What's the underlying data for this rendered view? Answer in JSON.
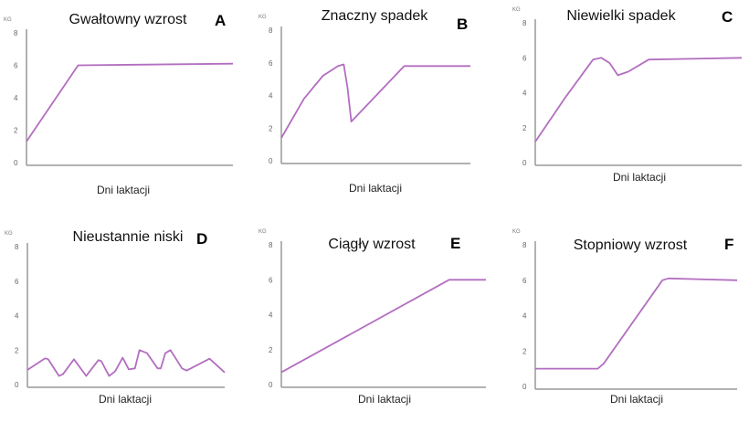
{
  "line_color": "#b36ec0",
  "chart_data": [
    {
      "type": "line",
      "id": "A",
      "title": "Gwałtowny wzrost",
      "letter": "A",
      "ylabel": "KG",
      "xlabel": "Dni laktacji",
      "ylim": [
        0,
        8
      ],
      "yticks": [
        "0",
        "2",
        "4",
        "6",
        "8"
      ],
      "grid": false,
      "x": [
        0,
        25,
        100
      ],
      "y": [
        1.3,
        6,
        6.1
      ]
    },
    {
      "type": "line",
      "id": "B",
      "title": "Znaczny spadek",
      "letter": "B",
      "ylabel": "KG",
      "xlabel": "Dni laktacji",
      "ylim": [
        0,
        8
      ],
      "yticks": [
        "0",
        "2",
        "4",
        "6",
        "8"
      ],
      "grid": false,
      "x": [
        0,
        12,
        22,
        30,
        33,
        35,
        37,
        65,
        100
      ],
      "y": [
        1.4,
        3.8,
        5.2,
        5.8,
        5.9,
        4.5,
        2.4,
        5.8,
        5.8
      ]
    },
    {
      "type": "line",
      "id": "C",
      "title": "Niewielki spadek",
      "letter": "C",
      "ylabel": "KG",
      "xlabel": "Dni laktacji",
      "ylim": [
        0,
        8
      ],
      "yticks": [
        "0",
        "2",
        "4",
        "6",
        "8"
      ],
      "grid": false,
      "x": [
        0,
        15,
        28,
        32,
        36,
        40,
        45,
        55,
        100
      ],
      "y": [
        1.2,
        3.8,
        5.9,
        6,
        5.7,
        5,
        5.2,
        5.9,
        6
      ]
    },
    {
      "type": "line",
      "id": "D",
      "title": "Nieustannie niski",
      "letter": "D",
      "ylabel": "KG",
      "xlabel": "Dni laktacji",
      "ylim": [
        0,
        8
      ],
      "yticks": [
        "0",
        "2",
        "4",
        "6",
        "8"
      ],
      "grid": false,
      "x": [
        0,
        9,
        10.5,
        16,
        18,
        23.6,
        29.8,
        36,
        37.5,
        41.4,
        44.4,
        48.3,
        51.4,
        54.5,
        56.8,
        60.6,
        66,
        67.6,
        69.9,
        72.5,
        78.4,
        80.7,
        92.3,
        100
      ],
      "y": [
        0.85,
        1.52,
        1.47,
        0.5,
        0.6,
        1.47,
        0.5,
        1.42,
        1.35,
        0.5,
        0.76,
        1.56,
        0.88,
        0.94,
        2.0,
        1.82,
        0.94,
        0.94,
        1.82,
        2.0,
        0.94,
        0.81,
        1.5,
        0.7
      ]
    },
    {
      "type": "line",
      "id": "E",
      "title": "Ciągły wzrost",
      "letter": "E",
      "ylabel": "KG",
      "xlabel": "Dni laktacji",
      "ylim": [
        0,
        8
      ],
      "yticks": [
        "0",
        "2",
        "4",
        "6",
        "8"
      ],
      "grid": false,
      "x": [
        0,
        82,
        100
      ],
      "y": [
        0.7,
        6,
        6
      ]
    },
    {
      "type": "line",
      "id": "F",
      "title": "Stopniowy wzrost",
      "letter": "F",
      "ylabel": "KG",
      "xlabel": "Dni laktacji",
      "ylim": [
        0,
        8
      ],
      "yticks": [
        "0",
        "2",
        "4",
        "6",
        "8"
      ],
      "grid": false,
      "x": [
        0,
        31,
        34,
        63,
        66,
        100
      ],
      "y": [
        1,
        1,
        1.3,
        6,
        6.1,
        6
      ]
    }
  ]
}
